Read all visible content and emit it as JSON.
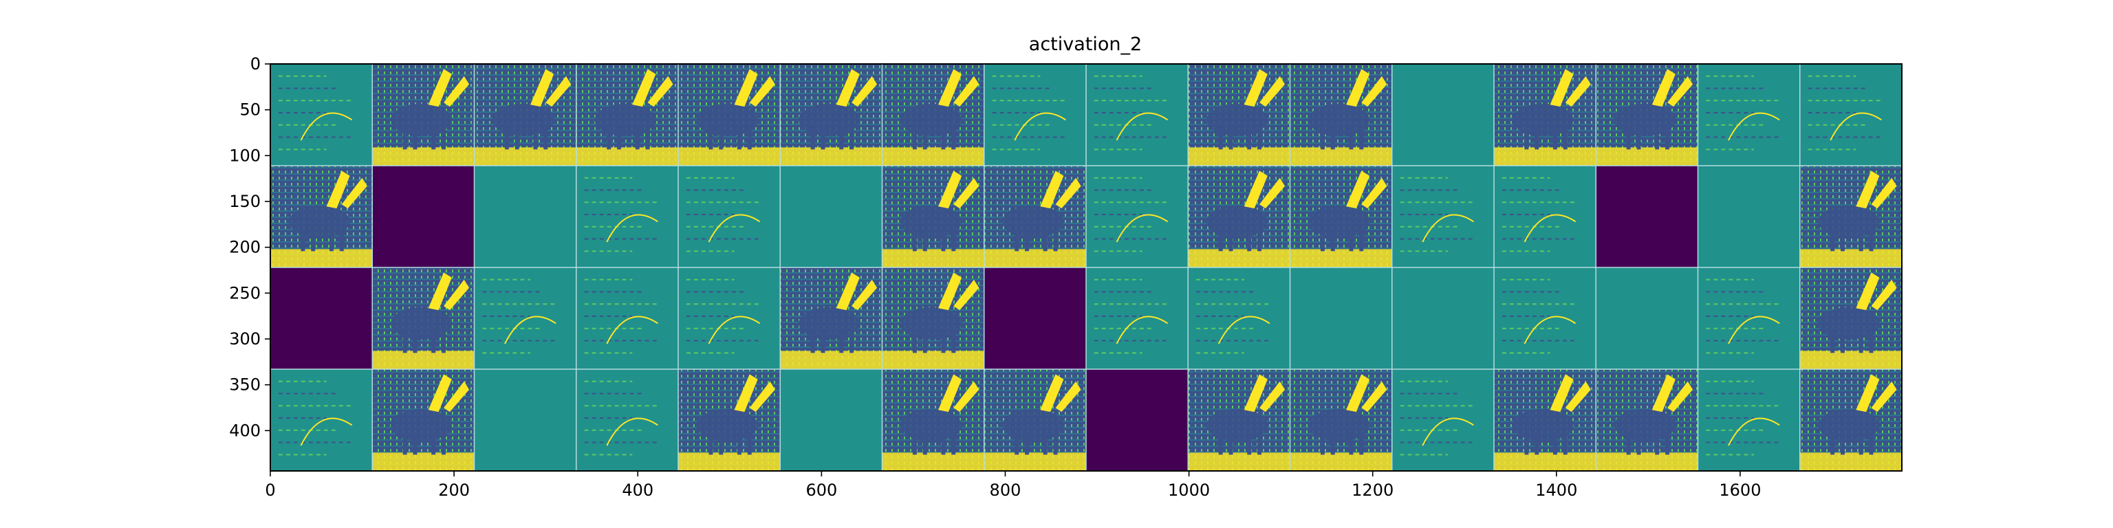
{
  "chart_data": {
    "type": "heatmap",
    "title": "activation_2",
    "xlabel": "",
    "ylabel": "",
    "xlim": [
      0,
      1776
    ],
    "ylim": [
      444,
      0
    ],
    "x_ticks": [
      0,
      200,
      400,
      600,
      800,
      1000,
      1200,
      1400,
      1600
    ],
    "y_ticks": [
      0,
      50,
      100,
      150,
      200,
      250,
      300,
      350,
      400
    ],
    "grid_rows": 4,
    "grid_cols": 16,
    "tile_size": 111,
    "colormap": "viridis",
    "colors": {
      "dead": "#440154",
      "flat": "#21918c",
      "low": "#3b528b",
      "high": "#fde725",
      "mid": "#5ec962"
    },
    "tiles": [
      [
        "edge",
        "feature",
        "feature",
        "feature",
        "feature",
        "feature",
        "feature",
        "edge",
        "edge",
        "feature",
        "feature",
        "flat",
        "feature",
        "feature",
        "edge",
        "edge"
      ],
      [
        "feature",
        "dead",
        "flat",
        "edge",
        "edge",
        "flat",
        "feature",
        "feature",
        "edge",
        "feature",
        "feature",
        "edge",
        "edge",
        "dead",
        "flat",
        "feature"
      ],
      [
        "dead",
        "feature",
        "edge",
        "edge",
        "edge",
        "feature",
        "feature",
        "dead",
        "edge",
        "edge",
        "flat",
        "flat",
        "edge",
        "flat",
        "edge",
        "feature"
      ],
      [
        "edge",
        "feature",
        "flat",
        "edge",
        "feature",
        "flat",
        "feature",
        "feature",
        "dead",
        "feature",
        "feature",
        "edge",
        "feature",
        "feature",
        "edge",
        "feature"
      ]
    ]
  }
}
